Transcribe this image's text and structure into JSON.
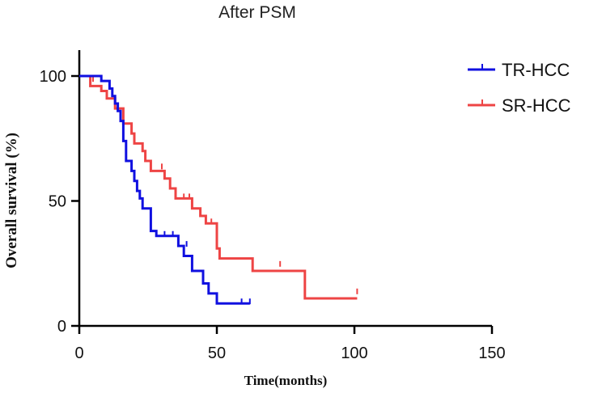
{
  "chart_data": {
    "type": "line",
    "title": "After PSM",
    "xlabel": "Time(months)",
    "ylabel": "Overall survival (%)",
    "xlim": [
      0,
      150
    ],
    "ylim": [
      0,
      110
    ],
    "x_ticks": [
      0,
      50,
      100,
      150
    ],
    "y_ticks": [
      0,
      50,
      100
    ],
    "legend_position": "top-right",
    "series": [
      {
        "name": "TR-HCC",
        "color": "#1010e0",
        "steps": [
          [
            0,
            100
          ],
          [
            8,
            98
          ],
          [
            11,
            95
          ],
          [
            12,
            92
          ],
          [
            13,
            89
          ],
          [
            14,
            86
          ],
          [
            15,
            82
          ],
          [
            16,
            74
          ],
          [
            17,
            66
          ],
          [
            19,
            62
          ],
          [
            20,
            58
          ],
          [
            21,
            54
          ],
          [
            22,
            51
          ],
          [
            23,
            47
          ],
          [
            26,
            38
          ],
          [
            28,
            36
          ],
          [
            36,
            32
          ],
          [
            38,
            28
          ],
          [
            41,
            22
          ],
          [
            45,
            17
          ],
          [
            47,
            13
          ],
          [
            50,
            9
          ],
          [
            62,
            9
          ]
        ],
        "censored": [
          [
            31,
            36
          ],
          [
            34,
            36
          ],
          [
            39,
            32
          ],
          [
            59,
            9
          ],
          [
            62,
            9
          ]
        ]
      },
      {
        "name": "SR-HCC",
        "color": "#ee4444",
        "steps": [
          [
            0,
            100
          ],
          [
            4,
            96
          ],
          [
            8,
            94
          ],
          [
            10,
            91
          ],
          [
            13,
            87
          ],
          [
            16,
            81
          ],
          [
            19,
            77
          ],
          [
            20,
            73
          ],
          [
            23,
            70
          ],
          [
            24,
            66
          ],
          [
            26,
            62
          ],
          [
            31,
            59
          ],
          [
            33,
            55
          ],
          [
            35,
            51
          ],
          [
            41,
            47
          ],
          [
            44,
            44
          ],
          [
            46,
            41
          ],
          [
            50,
            31
          ],
          [
            51,
            27
          ],
          [
            63,
            22
          ],
          [
            82,
            11
          ],
          [
            101,
            11
          ]
        ],
        "censored": [
          [
            5,
            98
          ],
          [
            30,
            63
          ],
          [
            38,
            51
          ],
          [
            40,
            51
          ],
          [
            48,
            41
          ],
          [
            63,
            24
          ],
          [
            73,
            24
          ],
          [
            101,
            13
          ]
        ]
      }
    ]
  }
}
